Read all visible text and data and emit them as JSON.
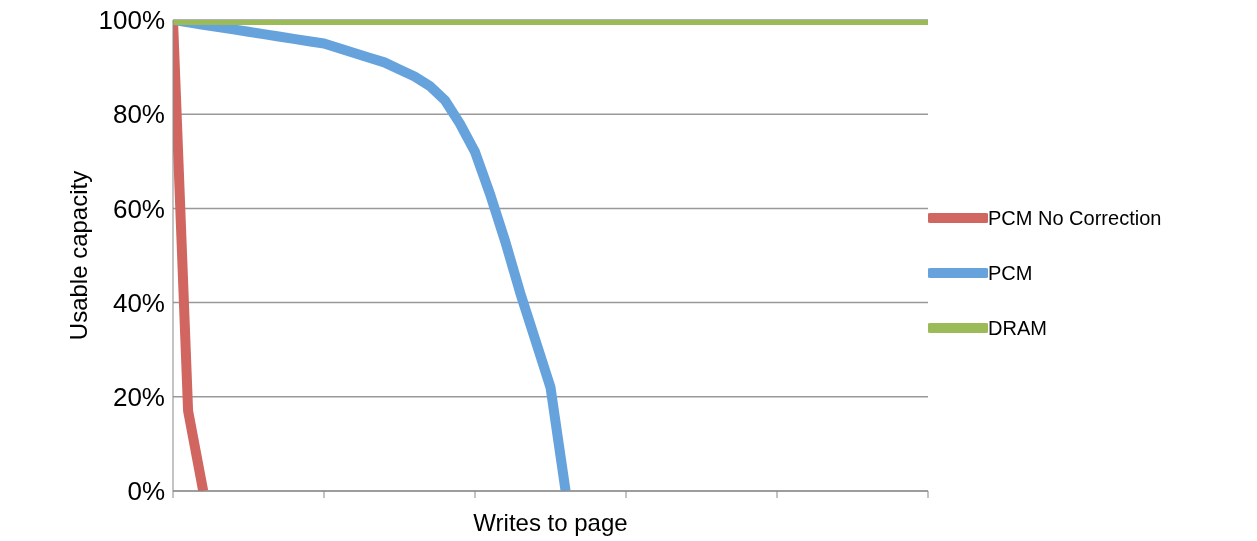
{
  "chart_data": {
    "type": "line",
    "xlabel": "Writes to page",
    "ylabel": "Usable capacity",
    "categories": [
      null,
      null,
      null,
      null,
      null,
      null,
      null,
      null,
      null,
      null,
      null,
      null,
      null,
      null,
      null,
      null,
      null,
      null,
      null,
      null,
      null,
      null,
      null,
      null,
      null,
      null,
      null,
      null,
      null,
      null,
      null,
      null,
      null,
      null,
      null,
      null,
      null,
      null,
      null,
      null,
      null,
      null,
      null,
      null,
      null,
      null,
      null,
      null,
      null,
      null,
      null
    ],
    "series": [
      {
        "name": "PCM No Correction",
        "color": "#d0665f",
        "values": [
          100,
          17,
          0,
          null,
          null,
          null,
          null,
          null,
          null,
          null,
          null,
          null,
          null,
          null,
          null,
          null,
          null,
          null,
          null,
          null,
          null,
          null,
          null,
          null,
          null,
          null,
          null,
          null,
          null,
          null,
          null,
          null,
          null,
          null,
          null,
          null,
          null,
          null,
          null,
          null,
          null,
          null,
          null,
          null,
          null,
          null,
          null,
          null,
          null,
          null,
          null
        ]
      },
      {
        "name": "PCM",
        "color": "#66a3dd",
        "values": [
          100,
          99.5,
          99,
          98.5,
          98,
          97.5,
          97,
          96.5,
          96,
          95.5,
          95,
          94,
          93,
          92,
          91,
          89.5,
          88,
          86,
          83,
          78,
          72,
          63,
          53,
          42,
          32,
          22,
          0,
          null,
          null,
          null,
          null,
          null,
          null,
          null,
          null,
          null,
          null,
          null,
          null,
          null,
          null,
          null,
          null,
          null,
          null,
          null,
          null,
          null,
          null,
          null,
          null
        ]
      },
      {
        "name": "DRAM",
        "color": "#9bbb59",
        "values": [
          100,
          100,
          100,
          100,
          100,
          100,
          100,
          100,
          100,
          100,
          100,
          100,
          100,
          100,
          100,
          100,
          100,
          100,
          100,
          100,
          100,
          100,
          100,
          100,
          100,
          100,
          100,
          100,
          100,
          100,
          100,
          100,
          100,
          100,
          100,
          100,
          100,
          100,
          100,
          100,
          100,
          100,
          100,
          100,
          100,
          100,
          100,
          100,
          100,
          100,
          100
        ]
      }
    ],
    "ylim": [
      0,
      100
    ],
    "yticks": [
      {
        "value": 0,
        "label": "0%"
      },
      {
        "value": 20,
        "label": "20%"
      },
      {
        "value": 40,
        "label": "40%"
      },
      {
        "value": 60,
        "label": "60%"
      },
      {
        "value": 80,
        "label": "80%"
      },
      {
        "value": 100,
        "label": "100%"
      }
    ],
    "grid": "y",
    "legend": "right",
    "marker": "none",
    "line_style": "solid"
  }
}
